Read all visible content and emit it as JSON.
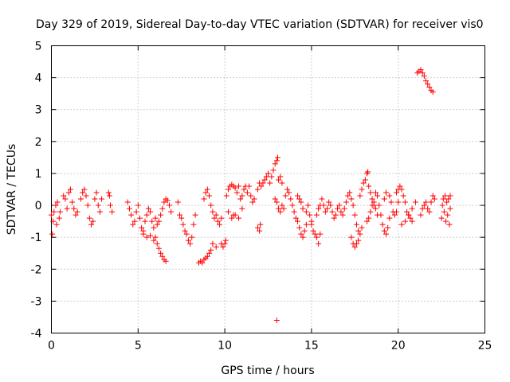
{
  "chart_data": {
    "type": "scatter",
    "title": "Day 329 of 2019, Sidereal Day-to-day VTEC variation (SDTVAR) for receiver vis0",
    "xlabel": "GPS time / hours",
    "ylabel": "SDTVAR / TECUs",
    "xlim": [
      0,
      25
    ],
    "ylim": [
      -4,
      5
    ],
    "xticks": [
      "0",
      "5",
      "10",
      "15",
      "20",
      "25"
    ],
    "yticks": [
      "-4",
      "-3",
      "-2",
      "-1",
      "0",
      "1",
      "2",
      "3",
      "4",
      "5"
    ],
    "grid": true,
    "marker": "+",
    "series_color": "#ff0000",
    "series": [
      {
        "name": "SDTVAR",
        "points": [
          [
            0.0,
            -0.3
          ],
          [
            0.05,
            -0.9
          ],
          [
            0.1,
            -0.5
          ],
          [
            0.15,
            -0.2
          ],
          [
            0.25,
            0.0
          ],
          [
            0.3,
            -0.6
          ],
          [
            0.35,
            0.1
          ],
          [
            0.45,
            -0.4
          ],
          [
            0.5,
            -0.2
          ],
          [
            0.7,
            0.3
          ],
          [
            0.8,
            0.2
          ],
          [
            0.9,
            -0.1
          ],
          [
            1.0,
            0.4
          ],
          [
            1.1,
            0.5
          ],
          [
            1.2,
            0.1
          ],
          [
            1.3,
            -0.1
          ],
          [
            1.4,
            -0.3
          ],
          [
            1.5,
            -0.2
          ],
          [
            1.7,
            0.2
          ],
          [
            1.8,
            0.4
          ],
          [
            1.9,
            0.5
          ],
          [
            2.0,
            0.3
          ],
          [
            2.1,
            0.0
          ],
          [
            2.2,
            -0.4
          ],
          [
            2.3,
            -0.6
          ],
          [
            2.4,
            -0.5
          ],
          [
            2.5,
            0.2
          ],
          [
            2.6,
            0.4
          ],
          [
            2.7,
            0.0
          ],
          [
            2.8,
            -0.2
          ],
          [
            2.9,
            0.2
          ],
          [
            3.3,
            0.4
          ],
          [
            3.35,
            0.3
          ],
          [
            3.4,
            0.0
          ],
          [
            3.5,
            -0.2
          ],
          [
            4.4,
            0.1
          ],
          [
            4.5,
            -0.1
          ],
          [
            4.6,
            -0.3
          ],
          [
            4.7,
            -0.6
          ],
          [
            4.8,
            -0.5
          ],
          [
            4.9,
            -0.2
          ],
          [
            5.0,
            0.0
          ],
          [
            5.1,
            -0.4
          ],
          [
            5.2,
            -0.7
          ],
          [
            5.3,
            -0.8
          ],
          [
            5.4,
            -0.5
          ],
          [
            5.5,
            -0.3
          ],
          [
            5.6,
            -0.1
          ],
          [
            5.7,
            -0.2
          ],
          [
            5.8,
            -0.5
          ],
          [
            5.9,
            -0.7
          ],
          [
            5.3,
            -0.9
          ],
          [
            5.5,
            -1.0
          ],
          [
            5.7,
            -0.95
          ],
          [
            5.9,
            -1.1
          ],
          [
            6.0,
            -1.0
          ],
          [
            6.1,
            -1.2
          ],
          [
            6.2,
            -1.35
          ],
          [
            6.3,
            -1.5
          ],
          [
            6.4,
            -1.6
          ],
          [
            6.5,
            -1.7
          ],
          [
            6.6,
            -1.75
          ],
          [
            6.0,
            -0.4
          ],
          [
            6.1,
            -0.6
          ],
          [
            6.2,
            -0.5
          ],
          [
            6.3,
            -0.3
          ],
          [
            6.4,
            -0.1
          ],
          [
            6.5,
            0.1
          ],
          [
            6.6,
            0.2
          ],
          [
            6.7,
            0.15
          ],
          [
            6.8,
            0.0
          ],
          [
            6.9,
            -0.2
          ],
          [
            7.3,
            0.1
          ],
          [
            7.4,
            -0.3
          ],
          [
            7.5,
            -0.4
          ],
          [
            7.6,
            -0.6
          ],
          [
            7.7,
            -0.8
          ],
          [
            7.8,
            -0.9
          ],
          [
            7.9,
            -1.1
          ],
          [
            8.0,
            -1.2
          ],
          [
            8.1,
            -1.0
          ],
          [
            8.2,
            -0.6
          ],
          [
            8.3,
            -0.3
          ],
          [
            8.5,
            -1.8
          ],
          [
            8.6,
            -1.75
          ],
          [
            8.7,
            -1.8
          ],
          [
            8.8,
            -1.7
          ],
          [
            8.9,
            -1.65
          ],
          [
            9.0,
            -1.6
          ],
          [
            9.1,
            -1.5
          ],
          [
            8.8,
            0.2
          ],
          [
            8.9,
            0.4
          ],
          [
            9.0,
            0.5
          ],
          [
            9.1,
            0.3
          ],
          [
            9.2,
            0.0
          ],
          [
            9.3,
            -0.2
          ],
          [
            9.4,
            -0.4
          ],
          [
            9.5,
            -0.3
          ],
          [
            9.6,
            -0.5
          ],
          [
            9.7,
            -0.6
          ],
          [
            9.8,
            -0.4
          ],
          [
            9.2,
            -1.4
          ],
          [
            9.3,
            -1.2
          ],
          [
            9.5,
            -1.3
          ],
          [
            9.8,
            -1.2
          ],
          [
            9.9,
            -1.3
          ],
          [
            10.0,
            -1.2
          ],
          [
            10.05,
            -1.1
          ],
          [
            10.1,
            0.3
          ],
          [
            10.2,
            0.5
          ],
          [
            10.3,
            0.6
          ],
          [
            10.4,
            0.65
          ],
          [
            10.5,
            0.6
          ],
          [
            10.6,
            0.55
          ],
          [
            10.7,
            0.4
          ],
          [
            10.8,
            0.6
          ],
          [
            10.9,
            0.2
          ],
          [
            11.0,
            -0.1
          ],
          [
            10.2,
            -0.2
          ],
          [
            10.4,
            -0.4
          ],
          [
            10.5,
            -0.3
          ],
          [
            10.6,
            -0.3
          ],
          [
            10.8,
            -0.4
          ],
          [
            11.0,
            0.3
          ],
          [
            11.1,
            0.5
          ],
          [
            11.2,
            0.6
          ],
          [
            11.3,
            0.4
          ],
          [
            11.4,
            0.6
          ],
          [
            11.5,
            0.3
          ],
          [
            11.6,
            0.1
          ],
          [
            11.7,
            0.2
          ],
          [
            11.9,
            0.5
          ],
          [
            12.0,
            0.7
          ],
          [
            12.1,
            0.6
          ],
          [
            12.2,
            0.7
          ],
          [
            12.3,
            0.8
          ],
          [
            12.4,
            0.9
          ],
          [
            12.5,
            1.0
          ],
          [
            11.9,
            -0.7
          ],
          [
            12.0,
            -0.8
          ],
          [
            12.05,
            -0.6
          ],
          [
            12.6,
            0.7
          ],
          [
            12.7,
            0.9
          ],
          [
            12.8,
            1.1
          ],
          [
            12.9,
            1.3
          ],
          [
            13.0,
            1.4
          ],
          [
            13.05,
            1.5
          ],
          [
            13.1,
            0.8
          ],
          [
            13.2,
            0.9
          ],
          [
            13.3,
            0.7
          ],
          [
            12.9,
            0.2
          ],
          [
            13.0,
            0.1
          ],
          [
            13.1,
            -0.1
          ],
          [
            13.2,
            -0.2
          ],
          [
            13.3,
            0.0
          ],
          [
            13.4,
            -0.1
          ],
          [
            13.0,
            -3.6
          ],
          [
            13.5,
            0.3
          ],
          [
            13.6,
            0.5
          ],
          [
            13.7,
            0.4
          ],
          [
            13.8,
            0.2
          ],
          [
            13.9,
            0.0
          ],
          [
            14.0,
            -0.2
          ],
          [
            14.1,
            -0.4
          ],
          [
            14.2,
            -0.5
          ],
          [
            14.3,
            -0.7
          ],
          [
            14.4,
            -0.9
          ],
          [
            14.5,
            -1.0
          ],
          [
            14.6,
            -0.8
          ],
          [
            14.7,
            -0.6
          ],
          [
            14.2,
            0.3
          ],
          [
            14.3,
            0.2
          ],
          [
            14.4,
            0.1
          ],
          [
            14.5,
            -0.1
          ],
          [
            14.7,
            -0.2
          ],
          [
            14.8,
            0.0
          ],
          [
            14.9,
            -0.3
          ],
          [
            15.0,
            -0.5
          ],
          [
            15.0,
            -0.6
          ],
          [
            15.1,
            -0.8
          ],
          [
            15.2,
            -0.9
          ],
          [
            15.3,
            -1.0
          ],
          [
            15.4,
            -1.2
          ],
          [
            15.5,
            -0.9
          ],
          [
            15.3,
            -0.3
          ],
          [
            15.4,
            -0.1
          ],
          [
            15.5,
            0.0
          ],
          [
            15.6,
            0.2
          ],
          [
            15.7,
            0.0
          ],
          [
            15.8,
            -0.2
          ],
          [
            15.9,
            -0.1
          ],
          [
            16.0,
            0.1
          ],
          [
            16.1,
            0.0
          ],
          [
            16.2,
            -0.2
          ],
          [
            16.3,
            -0.4
          ],
          [
            16.4,
            -0.3
          ],
          [
            16.5,
            -0.1
          ],
          [
            16.6,
            0.0
          ],
          [
            16.7,
            -0.2
          ],
          [
            16.8,
            -0.3
          ],
          [
            16.9,
            -0.1
          ],
          [
            17.0,
            0.1
          ],
          [
            17.1,
            0.3
          ],
          [
            17.2,
            0.4
          ],
          [
            17.3,
            0.2
          ],
          [
            17.4,
            0.0
          ],
          [
            17.5,
            -0.3
          ],
          [
            17.6,
            -0.6
          ],
          [
            17.7,
            -0.8
          ],
          [
            17.3,
            -1.0
          ],
          [
            17.4,
            -1.2
          ],
          [
            17.5,
            -1.3
          ],
          [
            17.6,
            -1.2
          ],
          [
            17.7,
            -1.1
          ],
          [
            17.8,
            -0.9
          ],
          [
            17.9,
            -0.7
          ],
          [
            17.8,
            0.3
          ],
          [
            17.9,
            0.5
          ],
          [
            18.0,
            0.7
          ],
          [
            18.1,
            0.8
          ],
          [
            18.2,
            1.0
          ],
          [
            18.25,
            1.05
          ],
          [
            18.3,
            0.6
          ],
          [
            18.4,
            0.4
          ],
          [
            18.5,
            0.2
          ],
          [
            18.6,
            0.0
          ],
          [
            18.2,
            -0.5
          ],
          [
            18.3,
            -0.4
          ],
          [
            18.4,
            -0.2
          ],
          [
            18.5,
            0.0
          ],
          [
            18.6,
            0.1
          ],
          [
            18.7,
            -0.1
          ],
          [
            18.8,
            -0.3
          ],
          [
            18.7,
            0.4
          ],
          [
            18.8,
            0.3
          ],
          [
            18.9,
            0.0
          ],
          [
            19.0,
            -0.3
          ],
          [
            19.1,
            -0.6
          ],
          [
            19.2,
            -0.8
          ],
          [
            19.3,
            -0.9
          ],
          [
            19.4,
            -0.7
          ],
          [
            19.5,
            -0.4
          ],
          [
            19.2,
            0.2
          ],
          [
            19.3,
            0.4
          ],
          [
            19.5,
            0.3
          ],
          [
            19.6,
            0.1
          ],
          [
            19.7,
            -0.2
          ],
          [
            19.8,
            -0.3
          ],
          [
            19.9,
            -0.2
          ],
          [
            20.0,
            0.1
          ],
          [
            19.9,
            0.4
          ],
          [
            20.0,
            0.5
          ],
          [
            20.1,
            0.6
          ],
          [
            20.2,
            0.5
          ],
          [
            20.3,
            0.3
          ],
          [
            20.4,
            0.1
          ],
          [
            20.5,
            -0.2
          ],
          [
            20.6,
            -0.3
          ],
          [
            20.7,
            -0.4
          ],
          [
            20.8,
            -0.5
          ],
          [
            20.2,
            -0.6
          ],
          [
            20.4,
            -0.5
          ],
          [
            20.6,
            -0.3
          ],
          [
            20.8,
            -0.1
          ],
          [
            21.0,
            0.1
          ],
          [
            21.1,
            4.15
          ],
          [
            21.2,
            4.2
          ],
          [
            21.3,
            4.25
          ],
          [
            21.4,
            4.15
          ],
          [
            21.5,
            4.05
          ],
          [
            21.6,
            3.9
          ],
          [
            21.7,
            3.8
          ],
          [
            21.8,
            3.7
          ],
          [
            21.9,
            3.6
          ],
          [
            22.0,
            3.55
          ],
          [
            21.3,
            -0.3
          ],
          [
            21.4,
            -0.1
          ],
          [
            21.5,
            0.0
          ],
          [
            21.6,
            0.1
          ],
          [
            21.7,
            -0.1
          ],
          [
            21.8,
            -0.2
          ],
          [
            21.9,
            0.1
          ],
          [
            22.0,
            0.3
          ],
          [
            22.1,
            0.2
          ],
          [
            22.5,
            -0.4
          ],
          [
            22.55,
            0.0
          ],
          [
            22.6,
            0.2
          ],
          [
            22.65,
            -0.2
          ],
          [
            22.7,
            0.3
          ],
          [
            22.75,
            -0.5
          ],
          [
            22.8,
            0.1
          ],
          [
            22.85,
            -0.3
          ],
          [
            22.9,
            0.2
          ],
          [
            22.95,
            -0.6
          ],
          [
            23.0,
            -0.1
          ],
          [
            23.0,
            0.3
          ]
        ]
      }
    ]
  }
}
